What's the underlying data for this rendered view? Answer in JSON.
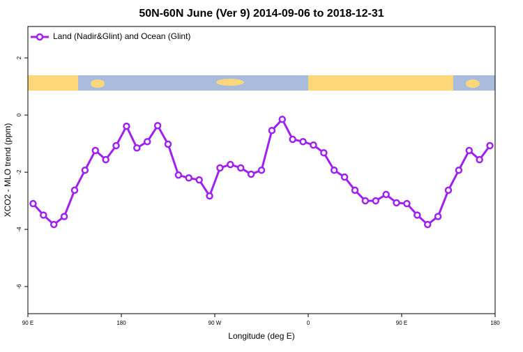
{
  "chart_data": {
    "type": "line",
    "title": "50N-60N June (Ver 9)   2014-09-06 to 2018-12-31",
    "x_label": "Longitude (deg E)",
    "y_label": "XCO2 - MLO trend (ppm)",
    "x": [
      95,
      105,
      115,
      125,
      135,
      145,
      155,
      165,
      175,
      185,
      195,
      205,
      215,
      225,
      235,
      245,
      255,
      265,
      275,
      285,
      295,
      305,
      315,
      325,
      335,
      345,
      355,
      365,
      375,
      385,
      395,
      405,
      415,
      425,
      435,
      445,
      455,
      465,
      475,
      485,
      495,
      505,
      515,
      525,
      535
    ],
    "series": [
      {
        "name": "Land (Nadir&Glint) and Ocean (Glint)",
        "color": "#a020f0",
        "values": [
          -3.1,
          -3.5,
          -3.83,
          -3.55,
          -2.63,
          -1.93,
          -1.24,
          -1.56,
          -1.07,
          -0.39,
          -1.15,
          -0.93,
          -0.37,
          -1.02,
          -2.1,
          -2.2,
          -2.27,
          -2.83,
          -1.85,
          -1.73,
          -1.85,
          -2.07,
          -1.93,
          -0.54,
          -0.15,
          -0.85,
          -0.93,
          -1.05,
          -1.32,
          -1.93,
          -2.17,
          -2.63,
          -3.0,
          -3.0,
          -2.78,
          -3.07,
          -3.1,
          -3.5,
          -3.83,
          -3.55,
          -2.63,
          -1.93,
          -1.24,
          -1.56,
          -1.07
        ]
      }
    ],
    "xlim": [
      90,
      540
    ],
    "xticks": [
      {
        "value": 90,
        "label": "90 E"
      },
      180,
      {
        "value": 270,
        "label": "90 W"
      },
      {
        "value": 360,
        "label": "0"
      },
      {
        "value": 450,
        "label": "90 E"
      },
      {
        "value": 540,
        "label": "180"
      }
    ],
    "ylim": [
      -6.95,
      3.1
    ],
    "yticks": [
      -6,
      -4,
      -2,
      0,
      2
    ],
    "legend": "top-left"
  }
}
